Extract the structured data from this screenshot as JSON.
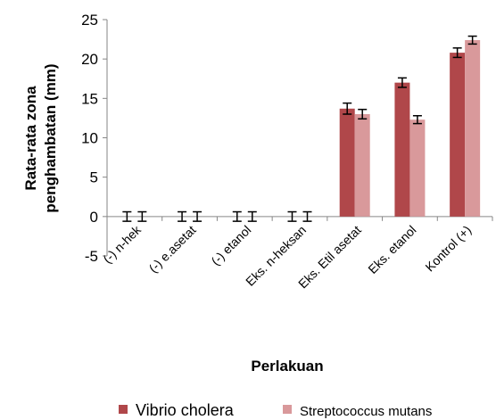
{
  "chart_data": {
    "type": "bar",
    "categories": [
      "(-) n-hek",
      "(-) e.asetat",
      "(-) etanol",
      "Eks. n-heksan",
      "Eks. Etil asetat",
      "Eks. etanol",
      "Kontrol (+)"
    ],
    "series": [
      {
        "name": "Vibrio cholera",
        "color": "#b0474a",
        "values": [
          0,
          0,
          0,
          0,
          13.7,
          17.0,
          20.8
        ],
        "errors": [
          0.6,
          0.6,
          0.6,
          0.6,
          0.7,
          0.6,
          0.6
        ]
      },
      {
        "name": "Streptococcus mutans",
        "color": "#d9999b",
        "values": [
          0,
          0,
          0,
          0,
          13.0,
          12.3,
          22.4
        ],
        "errors": [
          0.6,
          0.6,
          0.6,
          0.6,
          0.6,
          0.5,
          0.5
        ]
      }
    ],
    "xlabel": "Perlakuan",
    "ylabel_lines": [
      "Rata-rata zona",
      "penghambatan (mm)"
    ],
    "ylim": [
      -5,
      25
    ],
    "yticks": [
      -5,
      0,
      5,
      10,
      15,
      20,
      25
    ],
    "legend_position": "bottom"
  }
}
